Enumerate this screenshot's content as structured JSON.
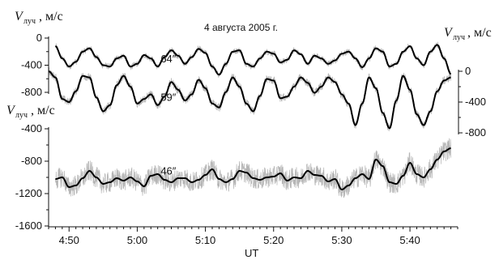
{
  "chart_data": {
    "type": "line",
    "title": "4 августа 2005 г.",
    "xlabel": "UT",
    "x_ticks": [
      "4:50",
      "5:00",
      "5:10",
      "5:20",
      "5:30",
      "5:40"
    ],
    "xlim": [
      "4:47",
      "5:47"
    ],
    "ylabel_main": "V",
    "ylabel_sub": "луч",
    "ylabel_unit": ", м/с",
    "axes": [
      {
        "id": "top-left",
        "ticks": [
          0,
          -400,
          -800
        ],
        "ylim": [
          0,
          -800
        ]
      },
      {
        "id": "right",
        "ticks": [
          0,
          -400,
          -800
        ],
        "ylim": [
          0,
          -800
        ]
      },
      {
        "id": "bottom-left",
        "ticks": [
          -400,
          -800,
          -1200,
          -1600
        ],
        "ylim": [
          -400,
          -1600
        ]
      }
    ],
    "series": [
      {
        "name": "64″",
        "axis": "top-left",
        "x": [
          "4:48",
          "4:49",
          "4:50",
          "4:51",
          "4:52",
          "4:53",
          "4:54",
          "4:55",
          "4:56",
          "4:57",
          "4:58",
          "4:59",
          "5:00",
          "5:01",
          "5:02",
          "5:03",
          "5:04",
          "5:05",
          "5:06",
          "5:07",
          "5:08",
          "5:09",
          "5:10",
          "5:11",
          "5:12",
          "5:13",
          "5:14",
          "5:15",
          "5:16",
          "5:17",
          "5:18",
          "5:19",
          "5:20",
          "5:21",
          "5:22",
          "5:23",
          "5:24",
          "5:25",
          "5:26",
          "5:27",
          "5:28",
          "5:29",
          "5:30",
          "5:31",
          "5:32",
          "5:33",
          "5:34",
          "5:35",
          "5:36",
          "5:37",
          "5:38",
          "5:39",
          "5:40",
          "5:41",
          "5:42",
          "5:43",
          "5:44",
          "5:45",
          "5:46"
        ],
        "values": [
          -120,
          -300,
          -420,
          -350,
          -200,
          -150,
          -280,
          -400,
          -420,
          -300,
          -260,
          -420,
          -380,
          -250,
          -300,
          -420,
          -280,
          -180,
          -260,
          -380,
          -280,
          -160,
          -220,
          -420,
          -540,
          -380,
          -200,
          -180,
          -380,
          -420,
          -300,
          -200,
          -230,
          -360,
          -320,
          -180,
          -240,
          -380,
          -260,
          -300,
          -380,
          -330,
          -230,
          -200,
          -300,
          -430,
          -300,
          -150,
          -200,
          -420,
          -380,
          -200,
          -120,
          -300,
          -400,
          -200,
          -100,
          -300,
          -530
        ]
      },
      {
        "name": "59″",
        "axis": "right",
        "x": [
          "4:47",
          "4:48",
          "4:49",
          "4:50",
          "4:51",
          "4:52",
          "4:53",
          "4:54",
          "4:55",
          "4:56",
          "4:57",
          "4:58",
          "4:59",
          "5:00",
          "5:01",
          "5:02",
          "5:03",
          "5:04",
          "5:05",
          "5:06",
          "5:07",
          "5:08",
          "5:09",
          "5:10",
          "5:11",
          "5:12",
          "5:13",
          "5:14",
          "5:15",
          "5:16",
          "5:17",
          "5:18",
          "5:19",
          "5:20",
          "5:21",
          "5:22",
          "5:23",
          "5:24",
          "5:25",
          "5:26",
          "5:27",
          "5:28",
          "5:29",
          "5:30",
          "5:31",
          "5:32",
          "5:33",
          "5:34",
          "5:35",
          "5:36",
          "5:37",
          "5:38",
          "5:39",
          "5:40",
          "5:41",
          "5:42",
          "5:43",
          "5:44",
          "5:45",
          "5:46"
        ],
        "values": [
          0,
          -80,
          -360,
          -400,
          -260,
          -60,
          -80,
          -340,
          -520,
          -440,
          -180,
          -60,
          -200,
          -420,
          -360,
          -300,
          -440,
          -330,
          -140,
          -240,
          -380,
          -300,
          -110,
          -220,
          -420,
          -470,
          -270,
          -80,
          -200,
          -420,
          -520,
          -320,
          -100,
          -120,
          -350,
          -330,
          -200,
          -80,
          -150,
          -280,
          -200,
          -80,
          -140,
          -300,
          -420,
          -700,
          -420,
          -80,
          -220,
          -540,
          -740,
          -380,
          -60,
          -240,
          -560,
          -700,
          -520,
          -260,
          -120,
          -80
        ]
      },
      {
        "name": "46″",
        "axis": "bottom-left",
        "x": [
          "4:48",
          "4:49",
          "4:50",
          "4:51",
          "4:52",
          "4:53",
          "4:54",
          "4:55",
          "4:56",
          "4:57",
          "4:58",
          "4:59",
          "5:00",
          "5:01",
          "5:02",
          "5:03",
          "5:04",
          "5:05",
          "5:06",
          "5:07",
          "5:08",
          "5:09",
          "5:10",
          "5:11",
          "5:12",
          "5:13",
          "5:14",
          "5:15",
          "5:16",
          "5:17",
          "5:18",
          "5:19",
          "5:20",
          "5:21",
          "5:22",
          "5:23",
          "5:24",
          "5:25",
          "5:26",
          "5:27",
          "5:28",
          "5:29",
          "5:30",
          "5:31",
          "5:32",
          "5:33",
          "5:34",
          "5:35",
          "5:36",
          "5:37",
          "5:38",
          "5:39",
          "5:40",
          "5:41",
          "5:42",
          "5:43",
          "5:44",
          "5:45",
          "5:46"
        ],
        "values": [
          -1020,
          -1000,
          -1120,
          -1100,
          -1010,
          -920,
          -1000,
          -1080,
          -1060,
          -1010,
          -1040,
          -1000,
          -1050,
          -1110,
          -980,
          -960,
          -1030,
          -1060,
          -1010,
          -1010,
          -1060,
          -1030,
          -970,
          -900,
          -1020,
          -1060,
          -1020,
          -920,
          -940,
          -1010,
          -1030,
          -1000,
          -990,
          -950,
          -1040,
          -1000,
          -1010,
          -920,
          -970,
          -980,
          -1050,
          -1020,
          -1150,
          -1100,
          -1010,
          -960,
          -1020,
          -780,
          -860,
          -1060,
          -1080,
          -980,
          -820,
          -960,
          -1000,
          -900,
          -780,
          -680,
          -640
        ]
      }
    ],
    "noisy_traces": true,
    "grid": false
  }
}
